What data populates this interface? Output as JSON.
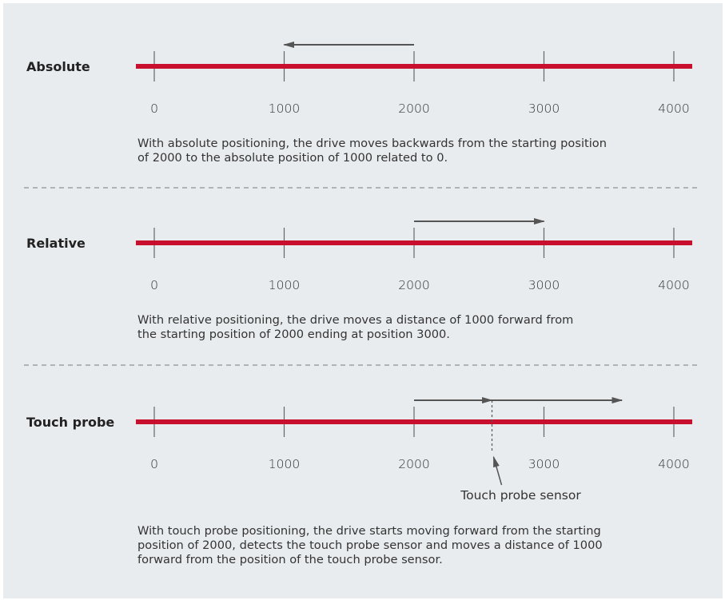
{
  "colors": {
    "panel_background": "#e9ecef",
    "axis_line": "#c8102e",
    "arrow": "#555555",
    "separator": "#777777"
  },
  "tick_values": [
    0,
    1000,
    2000,
    3000,
    4000
  ],
  "sections": [
    {
      "label": "Absolute",
      "description": "With absolute positioning, the drive moves backwards from the starting position\nof 2000 to the absolute position of 1000 related to 0.",
      "arrows": [
        {
          "from": 2000,
          "to": 1000
        }
      ]
    },
    {
      "label": "Relative",
      "description": "With relative positioning, the drive moves a distance of 1000 forward from\nthe starting position of 2000 ending at position 3000.",
      "arrows": [
        {
          "from": 2000,
          "to": 3000
        }
      ]
    },
    {
      "label": "Touch probe",
      "description": "With touch probe positioning, the drive starts moving forward from the starting\nposition of 2000, detects the touch probe sensor and moves a distance of 1000\nforward from the position of the touch probe sensor.",
      "arrows": [
        {
          "from": 2000,
          "to": 2600
        },
        {
          "from": 2600,
          "to": 3600
        }
      ],
      "sensor": {
        "position": 2600,
        "label": "Touch probe sensor"
      }
    }
  ]
}
